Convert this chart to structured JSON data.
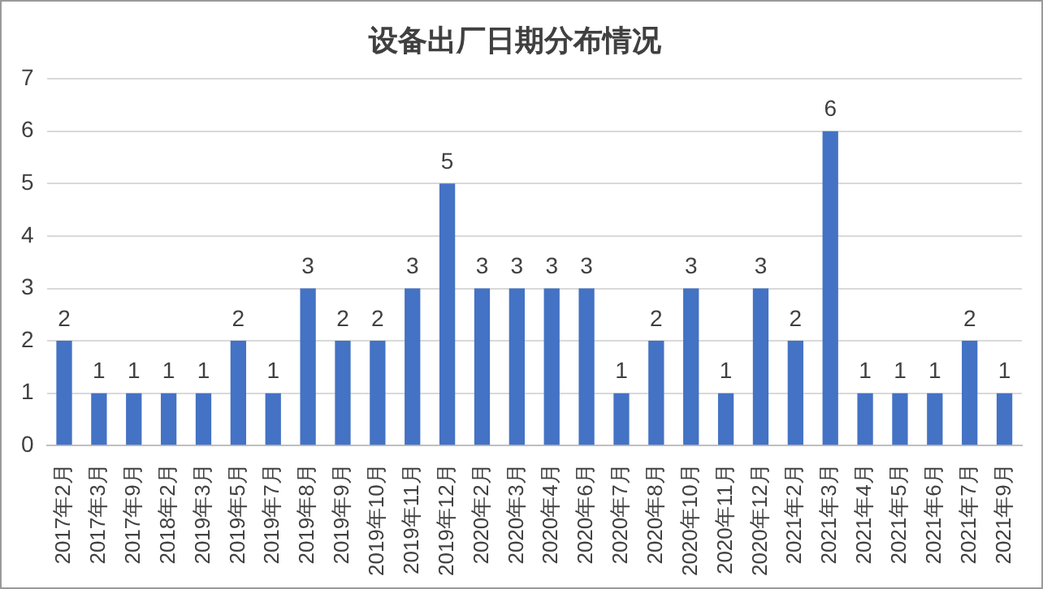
{
  "chart_data": {
    "type": "bar",
    "title": "设备出厂日期分布情况",
    "categories": [
      "2017年2月",
      "2017年3月",
      "2017年9月",
      "2018年2月",
      "2019年3月",
      "2019年5月",
      "2019年7月",
      "2019年8月",
      "2019年9月",
      "2019年10月",
      "2019年11月",
      "2019年12月",
      "2020年2月",
      "2020年3月",
      "2020年4月",
      "2020年6月",
      "2020年7月",
      "2020年8月",
      "2020年10月",
      "2020年11月",
      "2020年12月",
      "2021年2月",
      "2021年3月",
      "2021年4月",
      "2021年5月",
      "2021年6月",
      "2021年7月",
      "2021年9月"
    ],
    "values": [
      2,
      1,
      1,
      1,
      1,
      2,
      1,
      3,
      2,
      2,
      3,
      5,
      3,
      3,
      3,
      3,
      1,
      2,
      3,
      1,
      3,
      2,
      6,
      1,
      1,
      1,
      2,
      1
    ],
    "color": "#4472c4",
    "ylim": [
      0,
      7
    ],
    "yticks": [
      0,
      1,
      2,
      3,
      4,
      5,
      6,
      7
    ],
    "grid": "y",
    "data_labels": true
  }
}
